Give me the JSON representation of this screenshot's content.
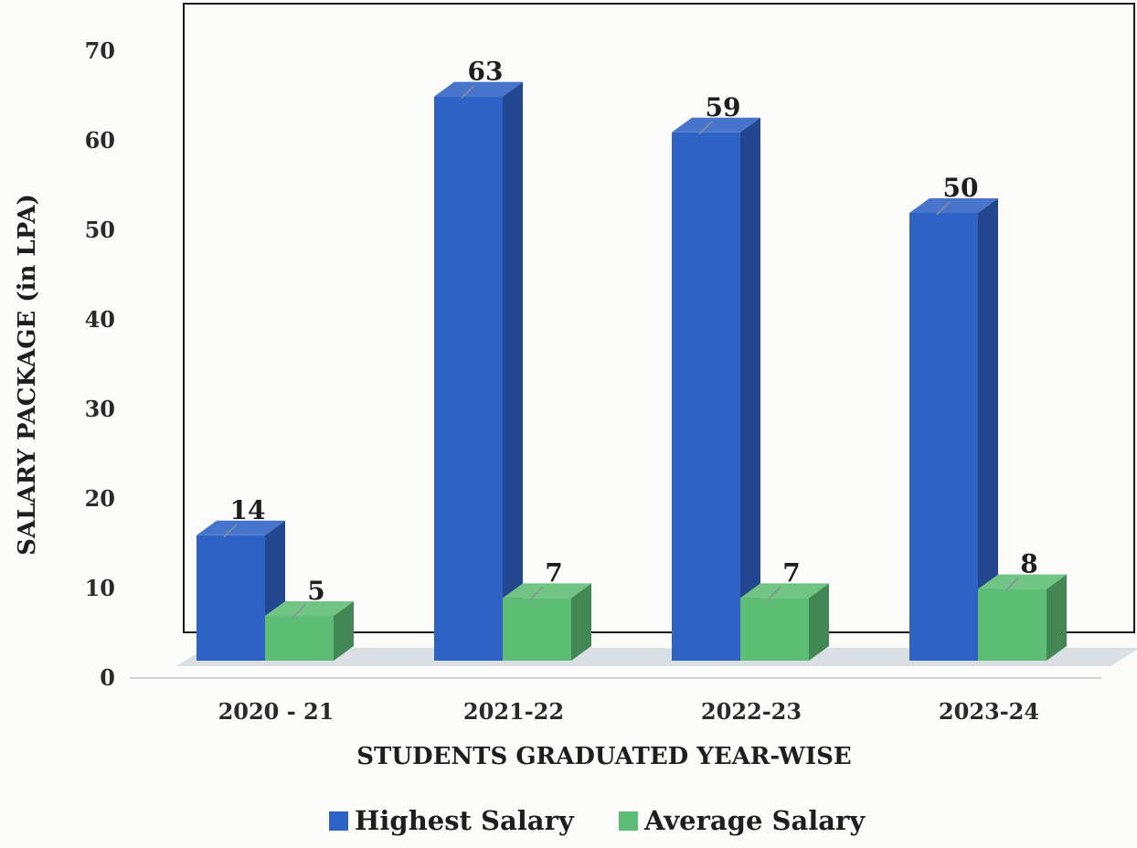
{
  "chart_data": {
    "type": "bar",
    "title": "",
    "xlabel": "STUDENTS GRADUATED YEAR-WISE",
    "ylabel": "SALARY PACKAGE (in LPA)",
    "categories": [
      "2020 - 21",
      "2021-22",
      "2022-23",
      "2023-24"
    ],
    "series": [
      {
        "name": "Highest Salary",
        "values": [
          14,
          63,
          59,
          50
        ],
        "color": "#2f62c5"
      },
      {
        "name": "Average Salary",
        "values": [
          5,
          7,
          7,
          8
        ],
        "color": "#5dbd74"
      }
    ],
    "data_labels": [
      [
        "14",
        "63",
        "59",
        "50"
      ],
      [
        "5",
        "7",
        "7",
        "8"
      ]
    ],
    "ylim": [
      0,
      70
    ],
    "yticks": [
      0,
      10,
      20,
      30,
      40,
      50,
      60,
      70
    ],
    "legend_position": "bottom",
    "grid": false
  }
}
